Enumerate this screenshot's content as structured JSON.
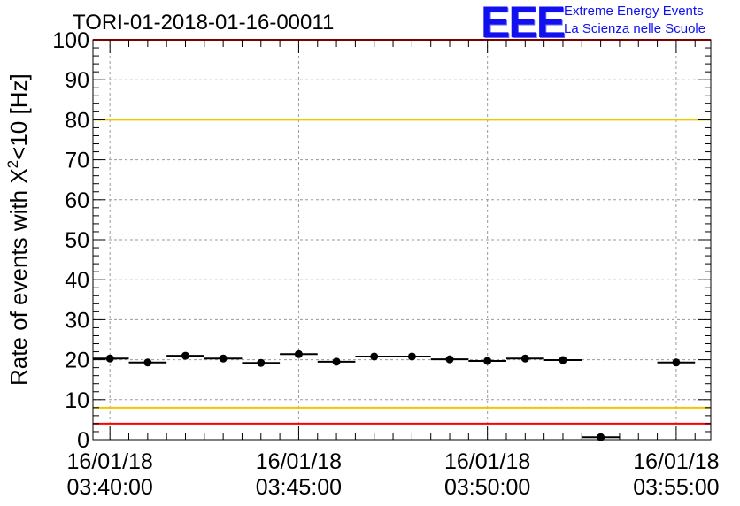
{
  "chart_data": {
    "type": "scatter",
    "title": "TORI-01-2018-01-16-00011",
    "ylabel_main": "Rate of events with X",
    "ylabel_sup": "2",
    "ylabel_rest": "<10 [Hz]",
    "ylim": [
      0,
      100
    ],
    "yticks": [
      "0",
      "10",
      "20",
      "30",
      "40",
      "50",
      "60",
      "70",
      "80",
      "90",
      "100"
    ],
    "xticks": [
      {
        "date": "16/01/18",
        "time": "03:40:00"
      },
      {
        "date": "16/01/18",
        "time": "03:45:00"
      },
      {
        "date": "16/01/18",
        "time": "03:50:00"
      },
      {
        "date": "16/01/18",
        "time": "03:55:00"
      }
    ],
    "xlim": [
      "03:39:33",
      "03:55:55"
    ],
    "grid": true,
    "bin_width_seconds": 60,
    "points": [
      {
        "x": "03:40:00",
        "y": 20.3
      },
      {
        "x": "03:41:00",
        "y": 19.3
      },
      {
        "x": "03:42:00",
        "y": 21.0
      },
      {
        "x": "03:43:00",
        "y": 20.3
      },
      {
        "x": "03:44:00",
        "y": 19.2
      },
      {
        "x": "03:45:00",
        "y": 21.4
      },
      {
        "x": "03:46:00",
        "y": 19.5
      },
      {
        "x": "03:47:00",
        "y": 20.8
      },
      {
        "x": "03:48:00",
        "y": 20.8
      },
      {
        "x": "03:49:00",
        "y": 20.1
      },
      {
        "x": "03:50:00",
        "y": 19.7
      },
      {
        "x": "03:51:00",
        "y": 20.3
      },
      {
        "x": "03:52:00",
        "y": 19.9
      },
      {
        "x": "03:53:00",
        "y": 0.6
      },
      {
        "x": "03:55:00",
        "y": 19.3
      }
    ],
    "reference_lines": [
      {
        "y": 100,
        "color": "#ff0000"
      },
      {
        "y": 80,
        "color": "#f2c500"
      },
      {
        "y": 8,
        "color": "#f2c500"
      },
      {
        "y": 4,
        "color": "#ff0000"
      }
    ]
  },
  "logo": {
    "mark": "EEE",
    "line1": "Extreme Energy Events",
    "line2": "La Scienza nelle Scuole",
    "color": "#1010f0"
  }
}
